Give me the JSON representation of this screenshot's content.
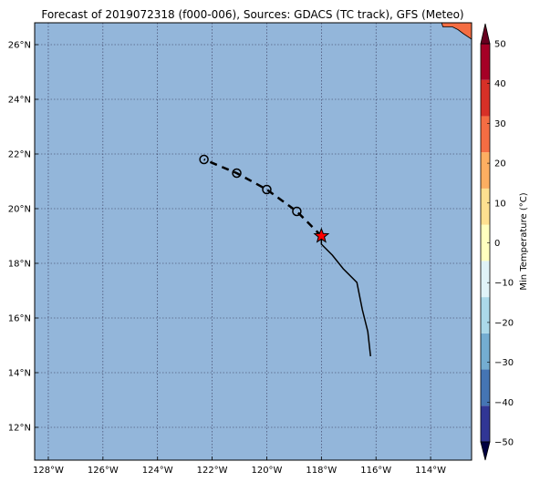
{
  "title": "Forecast of 2019072318 (f000-006), Sources: GDACS (TC track), GFS (Meteo)",
  "map": {
    "lon_range": [
      -128.5,
      -112.5
    ],
    "lat_range": [
      10.8,
      26.8
    ],
    "lon_ticks": [
      -128,
      -126,
      -124,
      -122,
      -120,
      -118,
      -116,
      -114
    ],
    "lat_ticks": [
      12,
      14,
      16,
      18,
      20,
      22,
      24,
      26
    ],
    "lon_tick_labels": [
      "128°W",
      "126°W",
      "124°W",
      "122°W",
      "120°W",
      "118°W",
      "116°W",
      "114°W"
    ],
    "lat_tick_labels": [
      "12°N",
      "14°N",
      "16°N",
      "18°N",
      "20°N",
      "22°N",
      "24°N",
      "26°N"
    ],
    "grid": true,
    "ocean_color": "#93b6da",
    "grid_color": "#333355"
  },
  "track": {
    "past": [
      {
        "lon": -116.2,
        "lat": 14.6
      },
      {
        "lon": -116.3,
        "lat": 15.5
      },
      {
        "lon": -116.5,
        "lat": 16.3
      },
      {
        "lon": -116.7,
        "lat": 17.3
      },
      {
        "lon": -117.2,
        "lat": 17.8
      },
      {
        "lon": -117.6,
        "lat": 18.3
      },
      {
        "lon": -118.0,
        "lat": 18.7
      },
      {
        "lon": -118.0,
        "lat": 19.0
      }
    ],
    "current": {
      "lon": -118.0,
      "lat": 19.0
    },
    "forecast": [
      {
        "lon": -118.0,
        "lat": 19.0
      },
      {
        "lon": -118.9,
        "lat": 19.9
      },
      {
        "lon": -120.0,
        "lat": 20.7
      },
      {
        "lon": -121.1,
        "lat": 21.3
      },
      {
        "lon": -122.3,
        "lat": 21.8
      }
    ],
    "forecast_points": [
      {
        "lon": -118.9,
        "lat": 19.9
      },
      {
        "lon": -120.0,
        "lat": 20.7
      },
      {
        "lon": -121.1,
        "lat": 21.3
      },
      {
        "lon": -122.3,
        "lat": 21.8
      }
    ],
    "current_marker_color": "#ff0000"
  },
  "colorbar": {
    "label": "Min Temperature (°C)",
    "ticks": [
      -50,
      -40,
      -30,
      -20,
      -10,
      0,
      10,
      20,
      30,
      40,
      50
    ],
    "tick_labels": [
      "−50",
      "−40",
      "−30",
      "−20",
      "−10",
      "0",
      "10",
      "20",
      "30",
      "40",
      "50"
    ],
    "colors": [
      "#313695",
      "#4575b4",
      "#74add1",
      "#abd9e9",
      "#e0f3f8",
      "#ffffbf",
      "#fee090",
      "#fdae61",
      "#f46d43",
      "#d73027",
      "#a50026"
    ],
    "extend_min_color": "#000040",
    "extend_max_color": "#67001f"
  },
  "land": {
    "color": "#f46d43",
    "edge_color": "#000000"
  }
}
